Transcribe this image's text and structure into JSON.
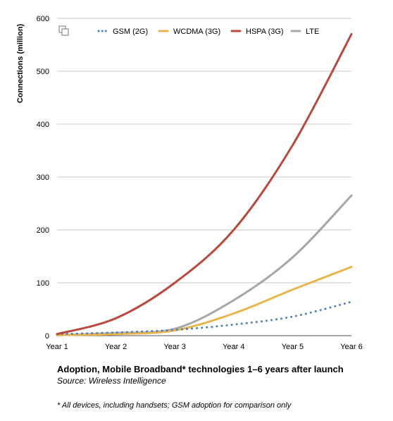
{
  "chart_data": {
    "type": "line",
    "ylabel": "Connections (million)",
    "xlabel": "",
    "x": [
      "Year 1",
      "Year 2",
      "Year 3",
      "Year 4",
      "Year 5",
      "Year 6"
    ],
    "ylim": [
      0,
      600
    ],
    "yticks": [
      0,
      100,
      200,
      300,
      400,
      500,
      600
    ],
    "grid": true,
    "legend_position": "top",
    "series": [
      {
        "name": "GSM (2G)",
        "color": "#4f81bd",
        "style": "dotted",
        "values": [
          3,
          6,
          11,
          21,
          36,
          64
        ]
      },
      {
        "name": "WCDMA (3G)",
        "color": "#e8b54d",
        "style": "solid",
        "values": [
          1,
          3,
          10,
          42,
          87,
          130
        ]
      },
      {
        "name": "HSPA (3G)",
        "color": "#b9483d",
        "style": "solid",
        "values": [
          3,
          33,
          100,
          200,
          360,
          570
        ]
      },
      {
        "name": "LTE",
        "color": "#a6a6a6",
        "style": "solid",
        "values": [
          1,
          5,
          13,
          67,
          148,
          265
        ]
      }
    ]
  },
  "caption": {
    "title": "Adoption, Mobile Broadband* technologies 1–6 years after launch",
    "source": "Source: Wireless Intelligence"
  },
  "footnote": "* All devices, including handsets; GSM adoption for comparison only",
  "icons": {
    "corner": "overlap-squares-icon"
  }
}
